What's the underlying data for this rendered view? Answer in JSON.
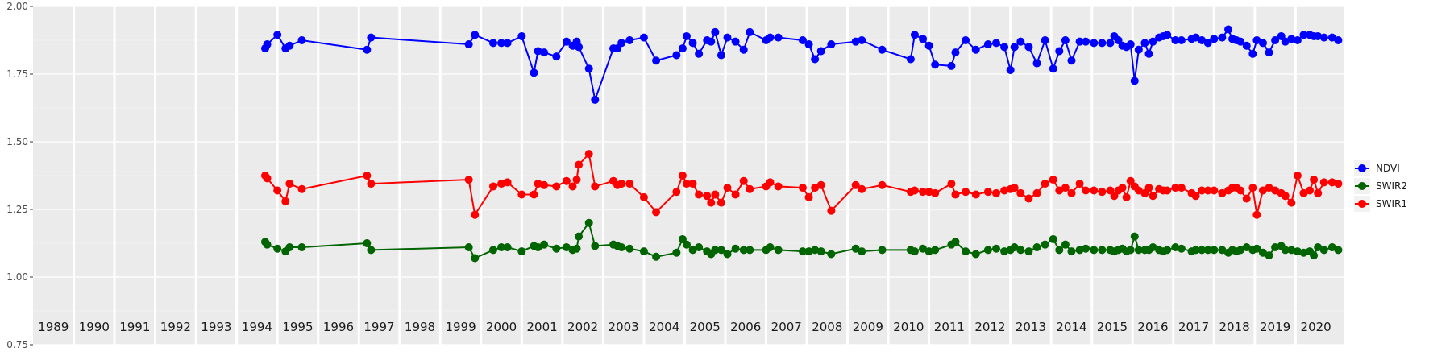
{
  "chart_data": {
    "type": "line",
    "title": "",
    "xlabel": "",
    "ylabel": "",
    "xlim": [
      1988.5,
      2020.7
    ],
    "ylim": [
      0.75,
      2.0
    ],
    "yticks": [
      "0.75",
      "1.00",
      "1.25",
      "1.50",
      "1.75",
      "2.00"
    ],
    "year_labels": [
      "1989",
      "1990",
      "1991",
      "1992",
      "1993",
      "1994",
      "1995",
      "1996",
      "1997",
      "1998",
      "1999",
      "2000",
      "2001",
      "2002",
      "2003",
      "2004",
      "2005",
      "2006",
      "2007",
      "2008",
      "2009",
      "2010",
      "2011",
      "2012",
      "2013",
      "2014",
      "2015",
      "2016",
      "2017",
      "2018",
      "2019",
      "2020"
    ],
    "grid": true,
    "legend_position": "right",
    "series": [
      {
        "name": "NDVI",
        "color": "#0000ff",
        "x": [
          1994.2,
          1994.25,
          1994.5,
          1994.7,
          1994.8,
          1995.1,
          1996.7,
          1996.8,
          1999.2,
          1999.35,
          1999.8,
          2000.0,
          2000.15,
          2000.5,
          2000.8,
          2000.9,
          2001.05,
          2001.35,
          2001.6,
          2001.75,
          2001.85,
          2001.9,
          2002.15,
          2002.3,
          2002.75,
          2002.85,
          2002.95,
          2003.15,
          2003.5,
          2003.8,
          2004.3,
          2004.45,
          2004.55,
          2004.7,
          2004.85,
          2005.05,
          2005.15,
          2005.25,
          2005.4,
          2005.55,
          2005.75,
          2005.95,
          2006.1,
          2006.5,
          2006.6,
          2006.8,
          2007.4,
          2007.55,
          2007.7,
          2007.85,
          2008.1,
          2008.7,
          2008.85,
          2009.35,
          2010.05,
          2010.15,
          2010.35,
          2010.5,
          2010.65,
          2011.05,
          2011.15,
          2011.4,
          2011.65,
          2011.95,
          2012.15,
          2012.35,
          2012.5,
          2012.6,
          2012.75,
          2012.95,
          2013.15,
          2013.35,
          2013.55,
          2013.7,
          2013.85,
          2014.0,
          2014.2,
          2014.35,
          2014.55,
          2014.75,
          2014.95,
          2015.05,
          2015.15,
          2015.25,
          2015.35,
          2015.45,
          2015.55,
          2015.65,
          2015.8,
          2015.9,
          2016.0,
          2016.15,
          2016.25,
          2016.35,
          2016.55,
          2016.7,
          2016.95,
          2017.05,
          2017.2,
          2017.35,
          2017.5,
          2017.7,
          2017.85,
          2017.95,
          2018.05,
          2018.15,
          2018.3,
          2018.45,
          2018.55,
          2018.7,
          2018.85,
          2019.0,
          2019.15,
          2019.25,
          2019.4,
          2019.55,
          2019.7,
          2019.85,
          2019.95,
          2020.05,
          2020.2,
          2020.4,
          2020.55
        ],
        "values": [
          1.845,
          1.86,
          1.895,
          1.845,
          1.855,
          1.875,
          1.84,
          1.885,
          1.86,
          1.895,
          1.865,
          1.865,
          1.865,
          1.89,
          1.755,
          1.835,
          1.83,
          1.815,
          1.87,
          1.855,
          1.87,
          1.85,
          1.77,
          1.655,
          1.845,
          1.845,
          1.865,
          1.875,
          1.885,
          1.8,
          1.82,
          1.845,
          1.89,
          1.865,
          1.825,
          1.875,
          1.87,
          1.905,
          1.82,
          1.885,
          1.87,
          1.84,
          1.905,
          1.875,
          1.885,
          1.885,
          1.875,
          1.86,
          1.805,
          1.835,
          1.86,
          1.87,
          1.875,
          1.84,
          1.805,
          1.895,
          1.88,
          1.855,
          1.785,
          1.78,
          1.83,
          1.875,
          1.84,
          1.86,
          1.865,
          1.85,
          1.765,
          1.85,
          1.87,
          1.85,
          1.79,
          1.875,
          1.77,
          1.835,
          1.875,
          1.8,
          1.87,
          1.87,
          1.865,
          1.865,
          1.865,
          1.89,
          1.875,
          1.855,
          1.85,
          1.86,
          1.725,
          1.84,
          1.865,
          1.825,
          1.87,
          1.885,
          1.89,
          1.895,
          1.875,
          1.875,
          1.88,
          1.885,
          1.875,
          1.865,
          1.88,
          1.885,
          1.915,
          1.88,
          1.875,
          1.87,
          1.855,
          1.825,
          1.875,
          1.865,
          1.83,
          1.875,
          1.89,
          1.87,
          1.88,
          1.875,
          1.895,
          1.895,
          1.89,
          1.89,
          1.885,
          1.885,
          1.875
        ]
      },
      {
        "name": "SWIR2",
        "color": "#006400",
        "x": [
          1994.2,
          1994.25,
          1994.5,
          1994.7,
          1994.8,
          1995.1,
          1996.7,
          1996.8,
          1999.2,
          1999.35,
          1999.8,
          2000.0,
          2000.15,
          2000.5,
          2000.8,
          2000.9,
          2001.05,
          2001.35,
          2001.6,
          2001.75,
          2001.85,
          2001.9,
          2002.15,
          2002.3,
          2002.75,
          2002.85,
          2002.95,
          2003.15,
          2003.5,
          2003.8,
          2004.3,
          2004.45,
          2004.55,
          2004.7,
          2004.85,
          2005.05,
          2005.15,
          2005.25,
          2005.4,
          2005.55,
          2005.75,
          2005.95,
          2006.1,
          2006.5,
          2006.6,
          2006.8,
          2007.4,
          2007.55,
          2007.7,
          2007.85,
          2008.1,
          2008.7,
          2008.85,
          2009.35,
          2010.05,
          2010.15,
          2010.35,
          2010.5,
          2010.65,
          2011.05,
          2011.15,
          2011.4,
          2011.65,
          2011.95,
          2012.15,
          2012.35,
          2012.5,
          2012.6,
          2012.75,
          2012.95,
          2013.15,
          2013.35,
          2013.55,
          2013.7,
          2013.85,
          2014.0,
          2014.2,
          2014.35,
          2014.55,
          2014.75,
          2014.95,
          2015.05,
          2015.15,
          2015.25,
          2015.35,
          2015.45,
          2015.55,
          2015.65,
          2015.8,
          2015.9,
          2016.0,
          2016.15,
          2016.25,
          2016.35,
          2016.55,
          2016.7,
          2016.95,
          2017.05,
          2017.2,
          2017.35,
          2017.5,
          2017.7,
          2017.85,
          2017.95,
          2018.05,
          2018.15,
          2018.3,
          2018.45,
          2018.55,
          2018.7,
          2018.85,
          2019.0,
          2019.15,
          2019.25,
          2019.4,
          2019.55,
          2019.7,
          2019.85,
          2019.95,
          2020.05,
          2020.2,
          2020.4,
          2020.55
        ],
        "values": [
          1.13,
          1.12,
          1.105,
          1.095,
          1.11,
          1.11,
          1.125,
          1.1,
          1.11,
          1.07,
          1.1,
          1.11,
          1.11,
          1.095,
          1.115,
          1.11,
          1.12,
          1.105,
          1.11,
          1.1,
          1.105,
          1.15,
          1.2,
          1.115,
          1.12,
          1.115,
          1.11,
          1.105,
          1.095,
          1.075,
          1.09,
          1.14,
          1.12,
          1.1,
          1.11,
          1.095,
          1.085,
          1.1,
          1.1,
          1.085,
          1.105,
          1.1,
          1.1,
          1.1,
          1.11,
          1.1,
          1.095,
          1.095,
          1.1,
          1.095,
          1.085,
          1.105,
          1.095,
          1.1,
          1.1,
          1.095,
          1.105,
          1.095,
          1.1,
          1.12,
          1.13,
          1.095,
          1.085,
          1.1,
          1.105,
          1.095,
          1.1,
          1.11,
          1.1,
          1.095,
          1.11,
          1.12,
          1.14,
          1.1,
          1.12,
          1.095,
          1.1,
          1.105,
          1.1,
          1.1,
          1.1,
          1.095,
          1.1,
          1.105,
          1.095,
          1.1,
          1.15,
          1.1,
          1.1,
          1.1,
          1.11,
          1.1,
          1.095,
          1.1,
          1.11,
          1.105,
          1.095,
          1.1,
          1.1,
          1.1,
          1.1,
          1.1,
          1.09,
          1.1,
          1.095,
          1.1,
          1.11,
          1.1,
          1.105,
          1.09,
          1.08,
          1.11,
          1.115,
          1.1,
          1.1,
          1.095,
          1.09,
          1.095,
          1.08,
          1.11,
          1.1,
          1.11,
          1.1
        ]
      },
      {
        "name": "SWIR1",
        "color": "#ff0000",
        "x": [
          1994.2,
          1994.25,
          1994.5,
          1994.7,
          1994.8,
          1995.1,
          1996.7,
          1996.8,
          1999.2,
          1999.35,
          1999.8,
          2000.0,
          2000.15,
          2000.5,
          2000.8,
          2000.9,
          2001.05,
          2001.35,
          2001.6,
          2001.75,
          2001.85,
          2001.9,
          2002.15,
          2002.3,
          2002.75,
          2002.85,
          2002.95,
          2003.15,
          2003.5,
          2003.8,
          2004.3,
          2004.45,
          2004.55,
          2004.7,
          2004.85,
          2005.05,
          2005.15,
          2005.25,
          2005.4,
          2005.55,
          2005.75,
          2005.95,
          2006.1,
          2006.5,
          2006.6,
          2006.8,
          2007.4,
          2007.55,
          2007.7,
          2007.85,
          2008.1,
          2008.7,
          2008.85,
          2009.35,
          2010.05,
          2010.15,
          2010.35,
          2010.5,
          2010.65,
          2011.05,
          2011.15,
          2011.4,
          2011.65,
          2011.95,
          2012.15,
          2012.35,
          2012.5,
          2012.6,
          2012.75,
          2012.95,
          2013.15,
          2013.35,
          2013.55,
          2013.7,
          2013.85,
          2014.0,
          2014.2,
          2014.35,
          2014.55,
          2014.75,
          2014.95,
          2015.05,
          2015.15,
          2015.25,
          2015.35,
          2015.45,
          2015.55,
          2015.65,
          2015.8,
          2015.9,
          2016.0,
          2016.15,
          2016.25,
          2016.35,
          2016.55,
          2016.7,
          2016.95,
          2017.05,
          2017.2,
          2017.35,
          2017.5,
          2017.7,
          2017.85,
          2017.95,
          2018.05,
          2018.15,
          2018.3,
          2018.45,
          2018.55,
          2018.7,
          2018.85,
          2019.0,
          2019.15,
          2019.25,
          2019.4,
          2019.55,
          2019.7,
          2019.85,
          2019.95,
          2020.05,
          2020.2,
          2020.4,
          2020.55
        ],
        "values": [
          1.375,
          1.365,
          1.32,
          1.28,
          1.345,
          1.325,
          1.375,
          1.345,
          1.36,
          1.23,
          1.335,
          1.345,
          1.35,
          1.305,
          1.305,
          1.345,
          1.34,
          1.335,
          1.355,
          1.335,
          1.36,
          1.415,
          1.455,
          1.335,
          1.355,
          1.34,
          1.345,
          1.345,
          1.295,
          1.24,
          1.315,
          1.375,
          1.345,
          1.345,
          1.305,
          1.3,
          1.275,
          1.305,
          1.275,
          1.33,
          1.305,
          1.355,
          1.325,
          1.335,
          1.35,
          1.335,
          1.33,
          1.295,
          1.33,
          1.34,
          1.245,
          1.34,
          1.325,
          1.34,
          1.315,
          1.32,
          1.315,
          1.315,
          1.31,
          1.345,
          1.305,
          1.315,
          1.305,
          1.315,
          1.31,
          1.32,
          1.325,
          1.33,
          1.31,
          1.29,
          1.31,
          1.345,
          1.36,
          1.32,
          1.33,
          1.31,
          1.345,
          1.32,
          1.32,
          1.315,
          1.32,
          1.3,
          1.32,
          1.33,
          1.295,
          1.355,
          1.335,
          1.32,
          1.31,
          1.33,
          1.3,
          1.325,
          1.32,
          1.32,
          1.33,
          1.33,
          1.31,
          1.3,
          1.32,
          1.32,
          1.32,
          1.31,
          1.32,
          1.33,
          1.33,
          1.32,
          1.29,
          1.33,
          1.23,
          1.32,
          1.33,
          1.32,
          1.31,
          1.3,
          1.275,
          1.375,
          1.31,
          1.32,
          1.36,
          1.31,
          1.35,
          1.35,
          1.345
        ]
      }
    ]
  }
}
